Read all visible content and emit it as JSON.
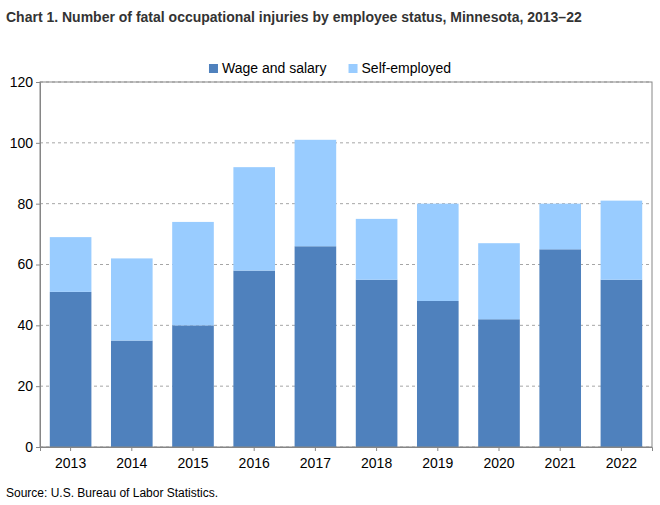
{
  "chart_data": {
    "type": "bar",
    "title": "Chart 1. Number of fatal occupational injuries by employee status, Minnesota, 2013–22",
    "source": "Source: U.S. Bureau of Labor Statistics.",
    "categories": [
      "2013",
      "2014",
      "2015",
      "2016",
      "2017",
      "2018",
      "2019",
      "2020",
      "2021",
      "2022"
    ],
    "series": [
      {
        "name": "Wage and salary",
        "color": "#4f81bd",
        "values": [
          51,
          35,
          40,
          58,
          66,
          55,
          48,
          42,
          65,
          55
        ]
      },
      {
        "name": "Self-employed",
        "color": "#99ccff",
        "values": [
          18,
          27,
          34,
          34,
          35,
          20,
          32,
          25,
          15,
          26
        ]
      }
    ],
    "ylim": [
      0,
      120
    ],
    "yticks": [
      0,
      20,
      40,
      60,
      80,
      100,
      120
    ],
    "stacked": true,
    "grid": true,
    "legend": "top"
  }
}
